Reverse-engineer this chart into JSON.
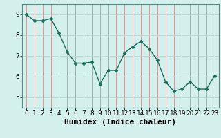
{
  "x": [
    0,
    1,
    2,
    3,
    4,
    5,
    6,
    7,
    8,
    9,
    10,
    11,
    12,
    13,
    14,
    15,
    16,
    17,
    18,
    19,
    20,
    21,
    22,
    23
  ],
  "y": [
    9.0,
    8.7,
    8.7,
    8.8,
    8.1,
    7.2,
    6.65,
    6.65,
    6.7,
    5.65,
    6.3,
    6.3,
    7.15,
    7.45,
    7.7,
    7.35,
    6.8,
    5.75,
    5.3,
    5.4,
    5.75,
    5.4,
    5.4,
    6.05
  ],
  "line_color": "#1a6b5a",
  "marker": "D",
  "marker_size": 2.5,
  "line_width": 1.0,
  "bg_color": "#d4f0ec",
  "grid_color": "#b8ddd8",
  "grid_vline_color": "#c8a0a0",
  "xlabel": "Humidex (Indice chaleur)",
  "xlabel_fontsize": 8,
  "tick_fontsize": 6.5,
  "ylim": [
    4.5,
    9.5
  ],
  "yticks": [
    5,
    6,
    7,
    8,
    9
  ],
  "xlim": [
    -0.5,
    23.5
  ],
  "xticks": [
    0,
    1,
    2,
    3,
    4,
    5,
    6,
    7,
    8,
    9,
    10,
    11,
    12,
    13,
    14,
    15,
    16,
    17,
    18,
    19,
    20,
    21,
    22,
    23
  ]
}
